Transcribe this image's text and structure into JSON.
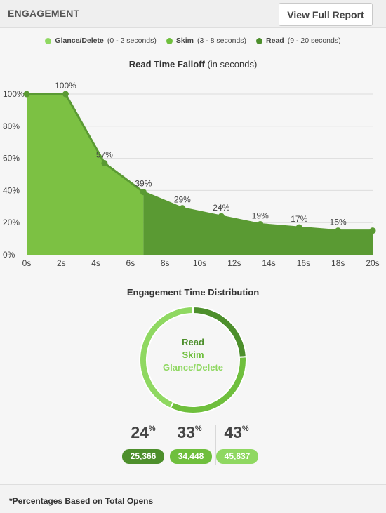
{
  "header": {
    "title": "ENGAGEMENT",
    "report_button": "View Full Report"
  },
  "legend": [
    {
      "name": "Glance/Delete",
      "range": "(0 - 2 seconds)",
      "color": "#8fd861"
    },
    {
      "name": "Skim",
      "range": "(3 - 8 seconds)",
      "color": "#6fbf3d"
    },
    {
      "name": "Read",
      "range": "(9 - 20 seconds)",
      "color": "#4d8f2c"
    }
  ],
  "chart_data": [
    {
      "type": "area",
      "title": "Read Time Falloff",
      "title_suffix": "(in seconds)",
      "x_tick_labels": [
        "0s",
        "2s",
        "4s",
        "6s",
        "8s",
        "10s",
        "12s",
        "14s",
        "16s",
        "18s",
        "20s"
      ],
      "y_tick_labels": [
        "0%",
        "20%",
        "40%",
        "60%",
        "80%",
        "100%"
      ],
      "xlim": [
        0,
        20
      ],
      "ylim": [
        0,
        100
      ],
      "grid": true,
      "x": [
        0,
        2.25,
        4.5,
        6.75,
        9,
        11.25,
        13.5,
        15.75,
        18,
        20.25
      ],
      "values": [
        100,
        100,
        57,
        39,
        29,
        24,
        19,
        17,
        15,
        15
      ],
      "data_labels": [
        "",
        "100%",
        "57%",
        "39%",
        "29%",
        "24%",
        "19%",
        "17%",
        "15%",
        ""
      ],
      "split_x": 6.75,
      "colors": {
        "early_fill": "#7cc143",
        "late_fill": "#5a9a33",
        "line": "#5a9a33"
      }
    },
    {
      "type": "pie",
      "title": "Engagement Time Distribution",
      "segments": [
        {
          "label": "Read",
          "value": 24,
          "count": "25,366",
          "color": "#4d8f2c"
        },
        {
          "label": "Skim",
          "value": 33,
          "count": "34,448",
          "color": "#6fbf3d"
        },
        {
          "label": "Glance/Delete",
          "value": 43,
          "count": "45,837",
          "color": "#8fd861"
        }
      ]
    }
  ],
  "footer": {
    "note": "*Percentages Based on Total Opens"
  }
}
